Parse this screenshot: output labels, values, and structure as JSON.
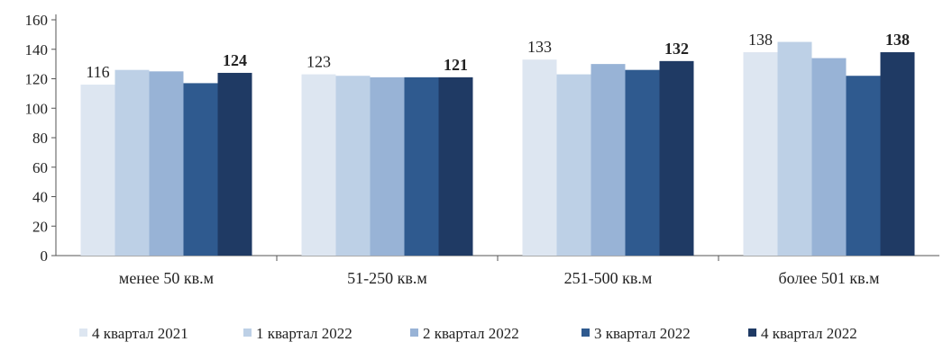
{
  "chart_data": {
    "type": "bar",
    "categories": [
      "менее 50 кв.м",
      "51-250 кв.м",
      "251-500 кв.м",
      "более 501 кв.м"
    ],
    "series": [
      {
        "name": "4 квартал 2021",
        "values": [
          116,
          123,
          133,
          138
        ],
        "color": "#dde6f1"
      },
      {
        "name": "1 квартал 2022",
        "values": [
          126,
          122,
          123,
          145
        ],
        "color": "#bdd0e6"
      },
      {
        "name": "2 квартал 2022",
        "values": [
          125,
          121,
          130,
          134
        ],
        "color": "#98b3d6"
      },
      {
        "name": "3 квартал 2022",
        "values": [
          117,
          121,
          126,
          122
        ],
        "color": "#2f5a8f"
      },
      {
        "name": "4 квартал 2022",
        "values": [
          124,
          121,
          132,
          138
        ],
        "color": "#1f3a64"
      }
    ],
    "data_labels": [
      {
        "series": 0,
        "labels": [
          "116",
          "123",
          "133",
          "138"
        ],
        "bold": false
      },
      {
        "series": 4,
        "labels": [
          "124",
          "121",
          "132",
          "138"
        ],
        "bold": true
      }
    ],
    "y_ticks": [
      "0",
      "20",
      "40",
      "60",
      "80",
      "100",
      "120",
      "140",
      "160"
    ],
    "ylim": [
      0,
      160
    ],
    "grid": false,
    "legend_position": "bottom"
  }
}
